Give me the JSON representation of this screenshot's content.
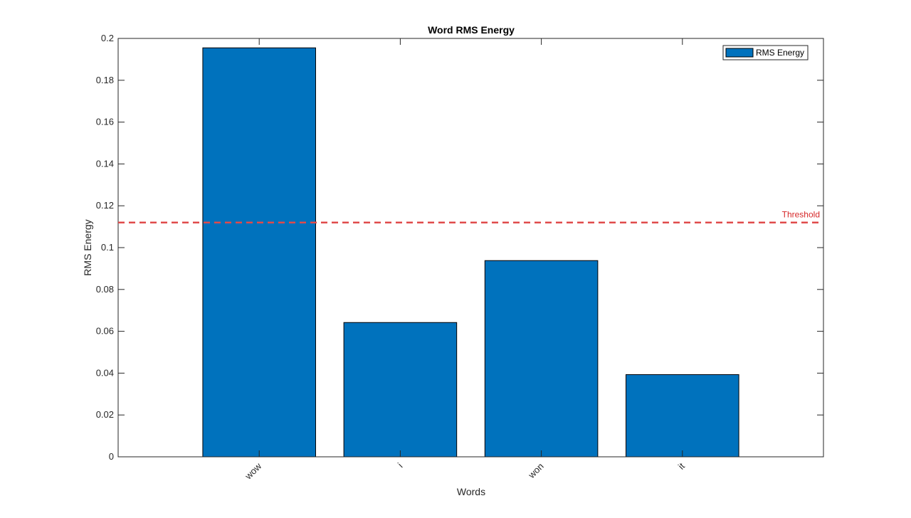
{
  "chart_data": {
    "type": "bar",
    "title": "Word RMS Energy",
    "xlabel": "Words",
    "ylabel": "RMS Energy",
    "categories": [
      "wow",
      "i",
      "won",
      "it"
    ],
    "series": [
      {
        "name": "RMS Energy",
        "values": [
          0.1955,
          0.0642,
          0.0938,
          0.0393
        ]
      }
    ],
    "xlim": [
      0,
      5
    ],
    "ylim": [
      0,
      0.2
    ],
    "yticks": [
      0,
      0.02,
      0.04,
      0.06,
      0.08,
      0.1,
      0.12,
      0.14,
      0.16,
      0.18,
      0.2
    ],
    "ytick_labels": [
      "0",
      "0.02",
      "0.04",
      "0.06",
      "0.08",
      "0.1",
      "0.12",
      "0.14",
      "0.16",
      "0.18",
      "0.2"
    ],
    "threshold": {
      "value": 0.112,
      "label": "Threshold",
      "style": "dashed"
    },
    "legend": {
      "position": "top-right",
      "entries": [
        "RMS Energy"
      ]
    },
    "grid": false,
    "xtick_rotation_deg": 45
  },
  "colors": {
    "bar": "#0072BD",
    "bar_edge": "#000000",
    "threshold": "#E04B4B",
    "threshold_label": "#D62728",
    "axis": "#262626"
  }
}
